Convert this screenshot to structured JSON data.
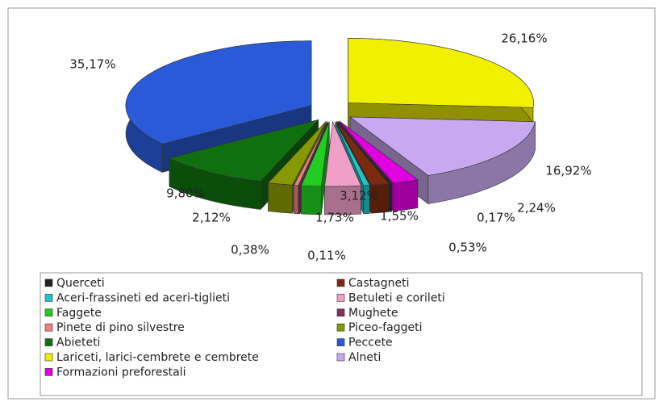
{
  "chart_data": {
    "type": "pie3d",
    "categories": [
      "Querceti",
      "Castagneti",
      "Aceri-frassineti ed aceri-tiglieti",
      "Betuleti e corileti",
      "Faggete",
      "Mughete",
      "Pinete di pino silvestre",
      "Piceo-faggeti",
      "Abieteti",
      "Peccete",
      "Lariceti, larici-cembrete e cembrete",
      "Alneti",
      "Formazioni preforestali"
    ],
    "values": [
      0.17,
      1.55,
      0.53,
      3.12,
      1.73,
      0.11,
      0.38,
      2.12,
      9.8,
      35.17,
      26.16,
      16.92,
      2.24
    ],
    "value_labels": [
      "0,17%",
      "1,55%",
      "0,53%",
      "3,12%",
      "1,73%",
      "0,11%",
      "0,38%",
      "2,12%",
      "9,80%",
      "35,17%",
      "26,16%",
      "16,92%",
      "2,24%"
    ],
    "colors": [
      "#222222",
      "#7b2a10",
      "#22c4c8",
      "#f0a0c8",
      "#22cc22",
      "#8a2e5e",
      "#f08080",
      "#889900",
      "#107010",
      "#2a5ad8",
      "#f0f000",
      "#c8a8f0",
      "#e000e0"
    ],
    "legend": "bottom"
  }
}
